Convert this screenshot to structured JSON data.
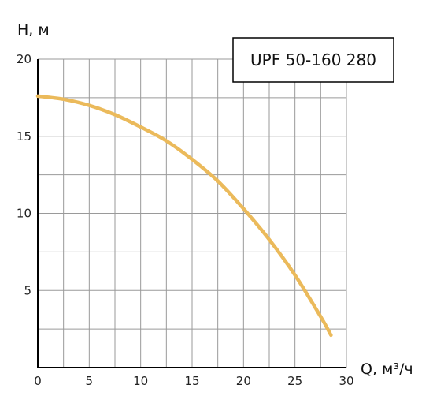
{
  "chart_data": {
    "type": "line",
    "title": "",
    "legend_label": "UPF 50-160 280",
    "legend_placement": "top-right",
    "xlabel": "Q, м³/ч",
    "ylabel": "H, м",
    "xlim": [
      0,
      30
    ],
    "ylim": [
      0,
      20
    ],
    "grid": true,
    "x_ticks": [
      0,
      5,
      10,
      15,
      20,
      25,
      30
    ],
    "x_tick_labels": [
      "0",
      "5",
      "10",
      "15",
      "20",
      "25",
      "30"
    ],
    "y_ticks": [
      5,
      10,
      15,
      20
    ],
    "y_tick_labels": [
      "5",
      "10",
      "15",
      "20"
    ],
    "series": [
      {
        "name": "UPF 50-160 280",
        "color": "#EBBA5B",
        "x": [
          0,
          2.5,
          5,
          7.5,
          10,
          12.5,
          15,
          17.5,
          20,
          22.5,
          25,
          27.5,
          28.5
        ],
        "y": [
          17.6,
          17.4,
          17.0,
          16.4,
          15.6,
          14.7,
          13.5,
          12.1,
          10.3,
          8.3,
          6.0,
          3.3,
          2.1
        ]
      }
    ],
    "colors": {
      "grid": "#9a9a9a",
      "axis": "#000000",
      "legend_border": "#000000"
    }
  }
}
